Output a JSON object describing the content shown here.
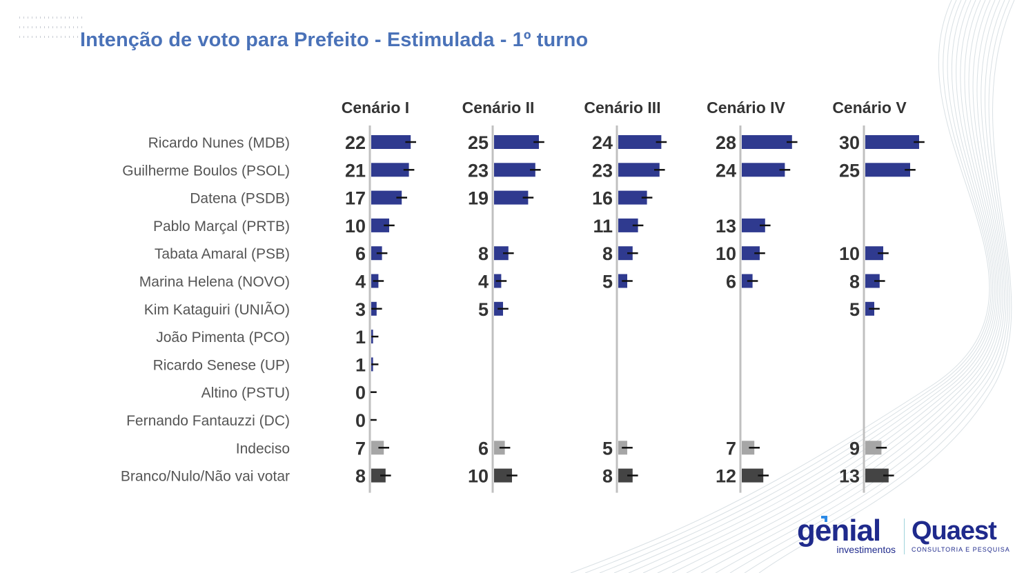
{
  "header": {
    "title": "Intenção de voto para Prefeito - Estimulada - 1º turno"
  },
  "colors": {
    "title": "#4a72b8",
    "candidate_bar": "#2f3a8f",
    "undecided_bar": "#a6a6a6",
    "blank_null_bar": "#444444",
    "axis_line": "#c0c0c0",
    "error_bar": "#111111",
    "value_text": "#333333",
    "label_text": "#555555"
  },
  "logos": {
    "genial_name": "genial",
    "genial_sub": "investimentos",
    "quaest_name": "Quaest",
    "quaest_sub": "CONSULTORIA E PESQUISA"
  },
  "chart_data": {
    "type": "bar",
    "orientation": "horizontal",
    "title": "Intenção de voto para Prefeito - Estimulada - 1º turno",
    "xlabel": "",
    "ylabel": "",
    "unit": "%",
    "grid": false,
    "legend": "none",
    "xlim": [
      0,
      35
    ],
    "categories": [
      "Ricardo Nunes (MDB)",
      "Guilherme Boulos (PSOL)",
      "Datena (PSDB)",
      "Pablo Marçal (PRTB)",
      "Tabata Amaral (PSB)",
      "Marina Helena (NOVO)",
      "Kim Kataguiri (UNIÃO)",
      "João Pimenta (PCO)",
      "Ricardo Senese (UP)",
      "Altino (PSTU)",
      "Fernando Fantauzzi (DC)",
      "Indeciso",
      "Branco/Nulo/Não vai votar"
    ],
    "category_kinds": [
      "candidate",
      "candidate",
      "candidate",
      "candidate",
      "candidate",
      "candidate",
      "candidate",
      "candidate",
      "candidate",
      "candidate",
      "candidate",
      "undecided",
      "blank_null"
    ],
    "series": [
      {
        "name": "Cenário I",
        "values": [
          22,
          21,
          17,
          10,
          6,
          4,
          3,
          1,
          1,
          0,
          0,
          7,
          8
        ]
      },
      {
        "name": "Cenário II",
        "values": [
          25,
          23,
          19,
          null,
          8,
          4,
          5,
          null,
          null,
          null,
          null,
          6,
          10
        ]
      },
      {
        "name": "Cenário III",
        "values": [
          24,
          23,
          16,
          11,
          8,
          5,
          null,
          null,
          null,
          null,
          null,
          5,
          8
        ]
      },
      {
        "name": "Cenário IV",
        "values": [
          28,
          24,
          null,
          13,
          10,
          6,
          null,
          null,
          null,
          null,
          null,
          7,
          12
        ]
      },
      {
        "name": "Cenário V",
        "values": [
          30,
          25,
          null,
          null,
          10,
          8,
          5,
          null,
          null,
          null,
          null,
          9,
          13
        ]
      }
    ],
    "error_margin": 3
  }
}
